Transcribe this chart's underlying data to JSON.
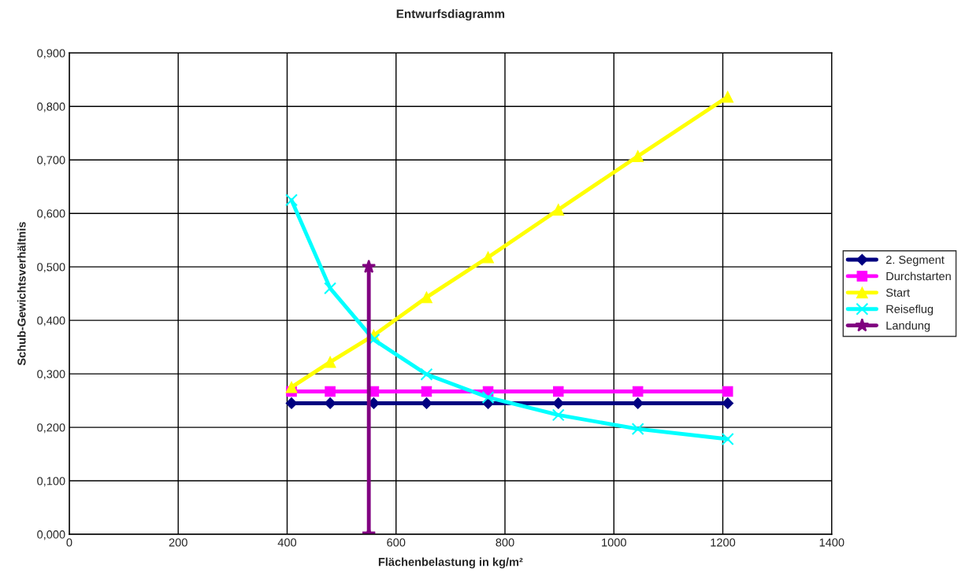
{
  "chart_data": {
    "type": "line",
    "title": "Entwurfsdiagramm",
    "xlabel": "Flächenbelastung in kg/m²",
    "ylabel": "Schub-Gewichtsverhältnis",
    "x": [
      408,
      479,
      559,
      656,
      769,
      898,
      1044,
      1209
    ],
    "series": [
      {
        "name": "2. Segment",
        "color": "#000080",
        "marker": "diamond",
        "values": [
          0.245,
          0.245,
          0.245,
          0.245,
          0.245,
          0.245,
          0.245,
          0.245
        ]
      },
      {
        "name": "Durchstarten",
        "color": "#ff00ff",
        "marker": "square",
        "values": [
          0.267,
          0.267,
          0.267,
          0.267,
          0.267,
          0.267,
          0.267,
          0.267
        ]
      },
      {
        "name": "Start",
        "color": "#ffff00",
        "marker": "triangle",
        "values": [
          0.275,
          0.322,
          0.372,
          0.443,
          0.518,
          0.607,
          0.707,
          0.818
        ]
      },
      {
        "name": "Reiseflug",
        "color": "#00ffff",
        "marker": "cross",
        "values": [
          0.625,
          0.46,
          0.364,
          0.299,
          0.256,
          0.223,
          0.197,
          0.178
        ]
      },
      {
        "name": "Landung",
        "color": "#800080",
        "marker": "star",
        "x": [
          550,
          550
        ],
        "values": [
          0.5,
          0
        ]
      }
    ],
    "xlim": [
      0,
      1400
    ],
    "xticks": [
      0,
      200,
      400,
      600,
      800,
      1000,
      1200,
      1400
    ],
    "ylim": [
      0,
      0.9
    ],
    "yticks": [
      {
        "value": 0,
        "label": "0,000"
      },
      {
        "value": 0.1,
        "label": "0,100"
      },
      {
        "value": 0.2,
        "label": "0,200"
      },
      {
        "value": 0.3,
        "label": "0,300"
      },
      {
        "value": 0.4,
        "label": "0,400"
      },
      {
        "value": 0.5,
        "label": "0,500"
      },
      {
        "value": 0.6,
        "label": "0,600"
      },
      {
        "value": 0.7,
        "label": "0,700"
      },
      {
        "value": 0.8,
        "label": "0,800"
      },
      {
        "value": 0.9,
        "label": "0,900"
      }
    ],
    "grid": true,
    "legend": "right",
    "line_style": "solid"
  }
}
